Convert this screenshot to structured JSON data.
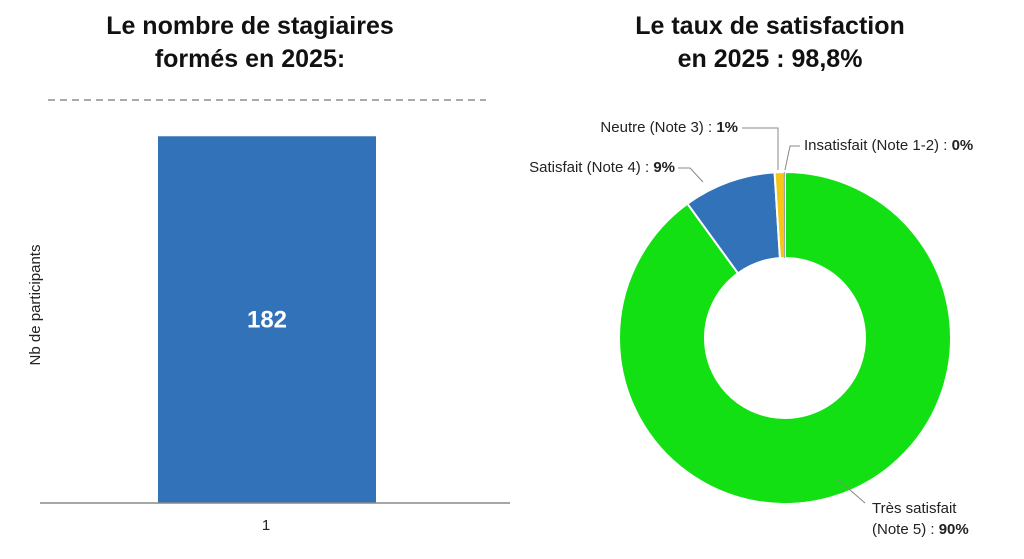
{
  "chart_data": [
    {
      "type": "bar",
      "title_line1": "Le nombre de stagiaires",
      "title_line2": "formés en 2025:",
      "categories": [
        "1"
      ],
      "values": [
        182
      ],
      "data_labels": [
        "182"
      ],
      "xlabel": "",
      "ylabel": "Nb de participants",
      "ylim": [
        0,
        200
      ],
      "grid": false,
      "color": "#3272b8"
    },
    {
      "type": "pie",
      "donut": true,
      "title_line1": "Le taux de satisfaction",
      "title_line2": "en 2025 : 98,8%",
      "slices": [
        {
          "label": "Très satisfait",
          "label_line2": "(Note 5) : ",
          "pct_text": "90%",
          "value": 90,
          "color": "#12e012"
        },
        {
          "label": "Satisfait (Note 4) : ",
          "pct_text": "9%",
          "value": 9,
          "color": "#3272b8"
        },
        {
          "label": "Neutre (Note 3) : ",
          "pct_text": "1%",
          "value": 1,
          "color": "#f5c518"
        },
        {
          "label": "Insatisfait (Note 1-2) : ",
          "pct_text": "0%",
          "value": 0,
          "color": "#999999"
        }
      ]
    }
  ]
}
